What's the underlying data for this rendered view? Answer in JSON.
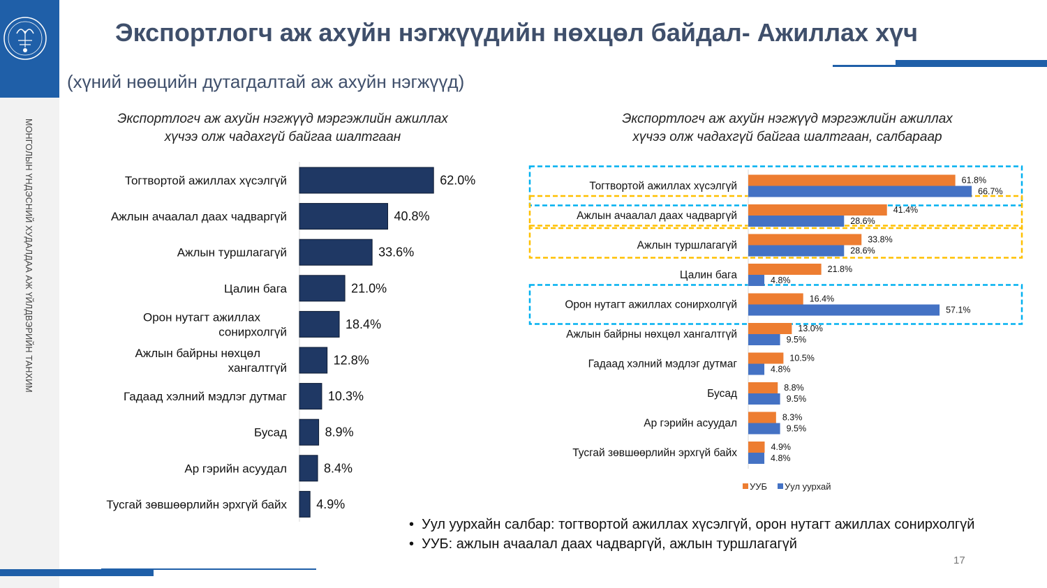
{
  "header": {
    "title": "Экспортлогч аж ахуйн нэгжүүдийн нөхцөл байдал- Ажиллах хүч",
    "subtitle": "(хүний нөөцийн дутагдалтай аж ахуйн нэгжүүд)"
  },
  "sidebar": {
    "org_text": "МОНГОЛЫН ҮНДЭСНИЙ ХУДАЛДАА АЖ ҮЙЛДВЭРИЙН ТАНХИМ"
  },
  "colors": {
    "brand_blue": "#1f5fa8",
    "bar_navy": "#1f3864",
    "series_uub": "#ed7d31",
    "series_mining": "#4472c4",
    "frame_cyan": "#00b0f0",
    "frame_gold": "#ffc000"
  },
  "chart_data": [
    {
      "type": "bar",
      "orientation": "horizontal",
      "title": "Экспортлогч аж ахуйн нэгжүүд мэргэжлийн ажиллах хүчээ олж чадахгүй байгаа шалтгаан",
      "title_lines": [
        "Экспортлогч аж ахуйн нэгжүүд мэргэжлийн ажиллах",
        "хүчээ олж чадахгүй байгаа шалтгаан"
      ],
      "categories": [
        [
          "Тогтвортой ажиллах хүсэлгүй"
        ],
        [
          "Ажлын ачаалал даах чадваргүй"
        ],
        [
          "Ажлын туршлагагүй"
        ],
        [
          "Цалин бага"
        ],
        [
          "Орон нутагт ажиллах",
          "сонирхолгүй"
        ],
        [
          "Ажлын байрны нөхцөл",
          "хангалтгүй"
        ],
        [
          "Гадаад хэлний мэдлэг дутмаг"
        ],
        [
          "Бусад"
        ],
        [
          "Ар гэрийн асуудал"
        ],
        [
          "Тусгай зөвшөөрлийн эрхгүй байх"
        ]
      ],
      "values": [
        62.0,
        40.8,
        33.6,
        21.0,
        18.4,
        12.8,
        10.3,
        8.9,
        8.4,
        4.9
      ],
      "labels": [
        "62.0%",
        "40.8%",
        "33.6%",
        "21.0%",
        "18.4%",
        "12.8%",
        "10.3%",
        "8.9%",
        "8.4%",
        "4.9%"
      ],
      "xlim": [
        0,
        100
      ]
    },
    {
      "type": "bar",
      "orientation": "horizontal",
      "title": "Экспортлогч аж ахуйн нэгжүүд мэргэжлийн ажиллах хүчээ олж чадахгүй байгаа шалтгаан, салбараар",
      "title_lines": [
        "Экспортлогч аж ахуйн нэгжүүд мэргэжлийн ажиллах",
        "хүчээ олж чадахгүй байгаа шалтгаан, салбараар"
      ],
      "categories": [
        "Тогтвортой ажиллах хүсэлгүй",
        "Ажлын ачаалал даах чадваргүй",
        "Ажлын туршлагагүй",
        "Цалин бага",
        "Орон нутагт ажиллах сонирхолгүй",
        "Ажлын байрны нөхцөл хангалтгүй",
        "Гадаад хэлний мэдлэг дутмаг",
        "Бусад",
        "Ар гэрийн асуудал",
        "Тусгай зөвшөөрлийн эрхгүй байх"
      ],
      "series": [
        {
          "name": "УУБ",
          "values": [
            61.8,
            41.4,
            33.8,
            21.8,
            16.4,
            13.0,
            10.5,
            8.8,
            8.3,
            4.9
          ],
          "labels": [
            "61.8%",
            "41.4%",
            "33.8%",
            "21.8%",
            "16.4%",
            "13.0%",
            "10.5%",
            "8.8%",
            "8.3%",
            "4.9%"
          ]
        },
        {
          "name": "Уул уурхай",
          "values": [
            66.7,
            28.6,
            28.6,
            4.8,
            57.1,
            9.5,
            4.8,
            9.5,
            9.5,
            4.8
          ],
          "labels": [
            "66.7%",
            "28.6%",
            "28.6%",
            "4.8%",
            "57.1%",
            "9.5%",
            "4.8%",
            "9.5%",
            "9.5%",
            "4.8%"
          ]
        }
      ],
      "highlight_frames": [
        {
          "rows": [
            0
          ],
          "color": "cyan"
        },
        {
          "rows": [
            1
          ],
          "color": "gold"
        },
        {
          "rows": [
            2
          ],
          "color": "gold"
        },
        {
          "rows": [
            4
          ],
          "color": "cyan"
        }
      ],
      "legend_position": "bottom",
      "xlim": [
        0,
        100
      ]
    }
  ],
  "bullets": [
    "Уул уурхайн салбар: тогтвортой ажиллах хүсэлгүй, орон нутагт ажиллах сонирхолгүй",
    "УУБ: ажлын ачаалал даах чадваргүй, ажлын туршлагагүй"
  ],
  "footer": {
    "page_number": "17"
  }
}
